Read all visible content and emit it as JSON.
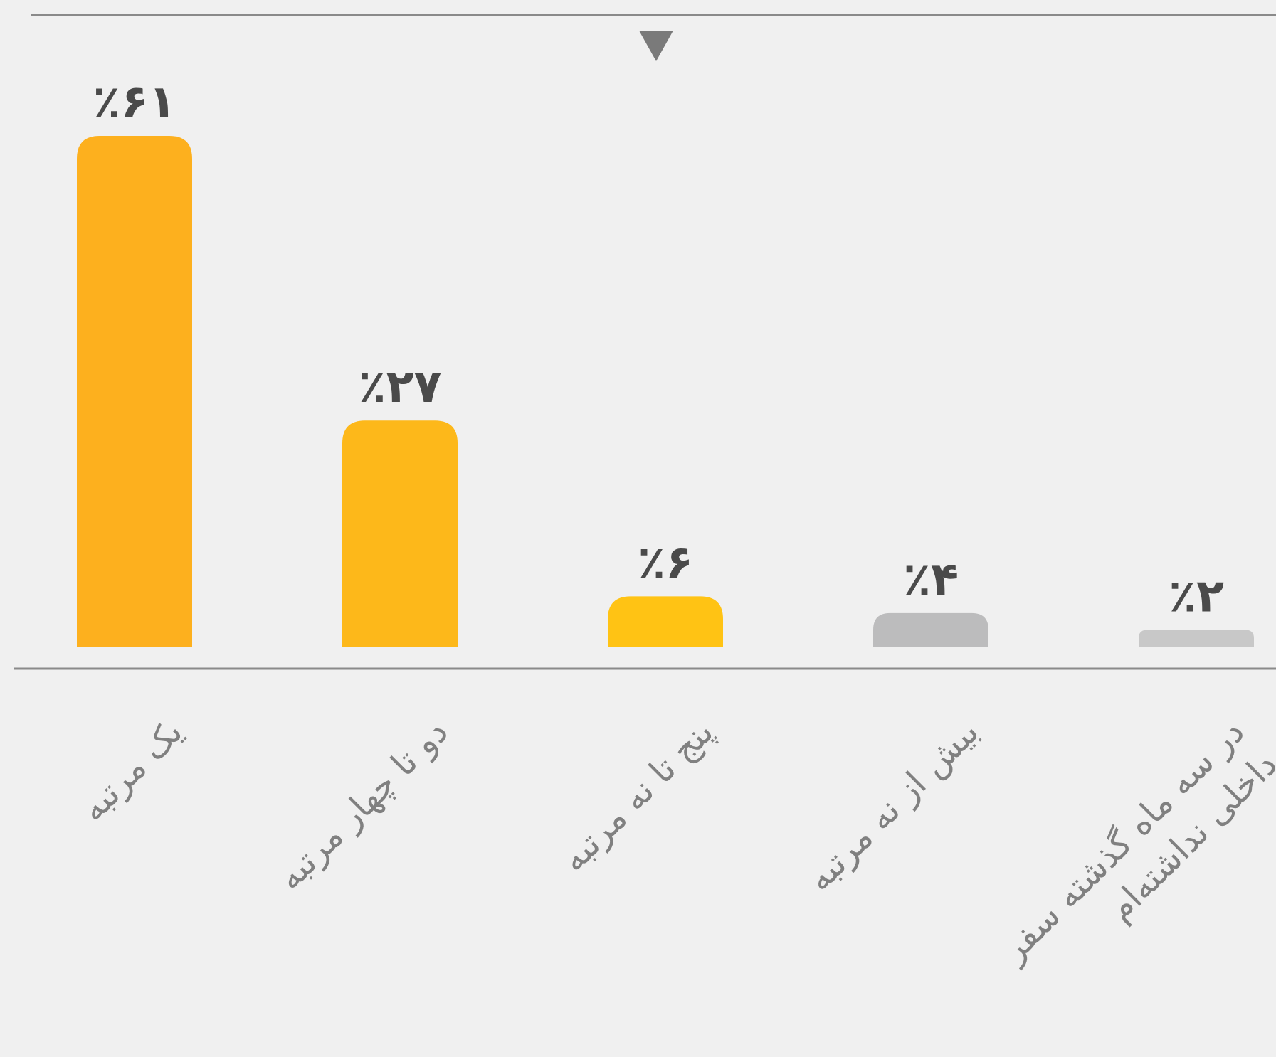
{
  "chart_data": {
    "type": "bar",
    "categories": [
      "یک مرتبه",
      "دو تا چهار مرتبه",
      "پنج تا نه مرتبه",
      "بیش از نه مرتبه",
      "در سه ماه گذشته سفر داخلی نداشته‌ام"
    ],
    "values": [
      61,
      27,
      6,
      4,
      2
    ],
    "value_labels": [
      "٪۶۱",
      "٪۲۷",
      "٪۶",
      "٪۴",
      "٪۲"
    ],
    "colors": [
      "#fdb01e",
      "#fdb81a",
      "#ffc314",
      "#bcbcbd",
      "#c8c8c8"
    ]
  }
}
